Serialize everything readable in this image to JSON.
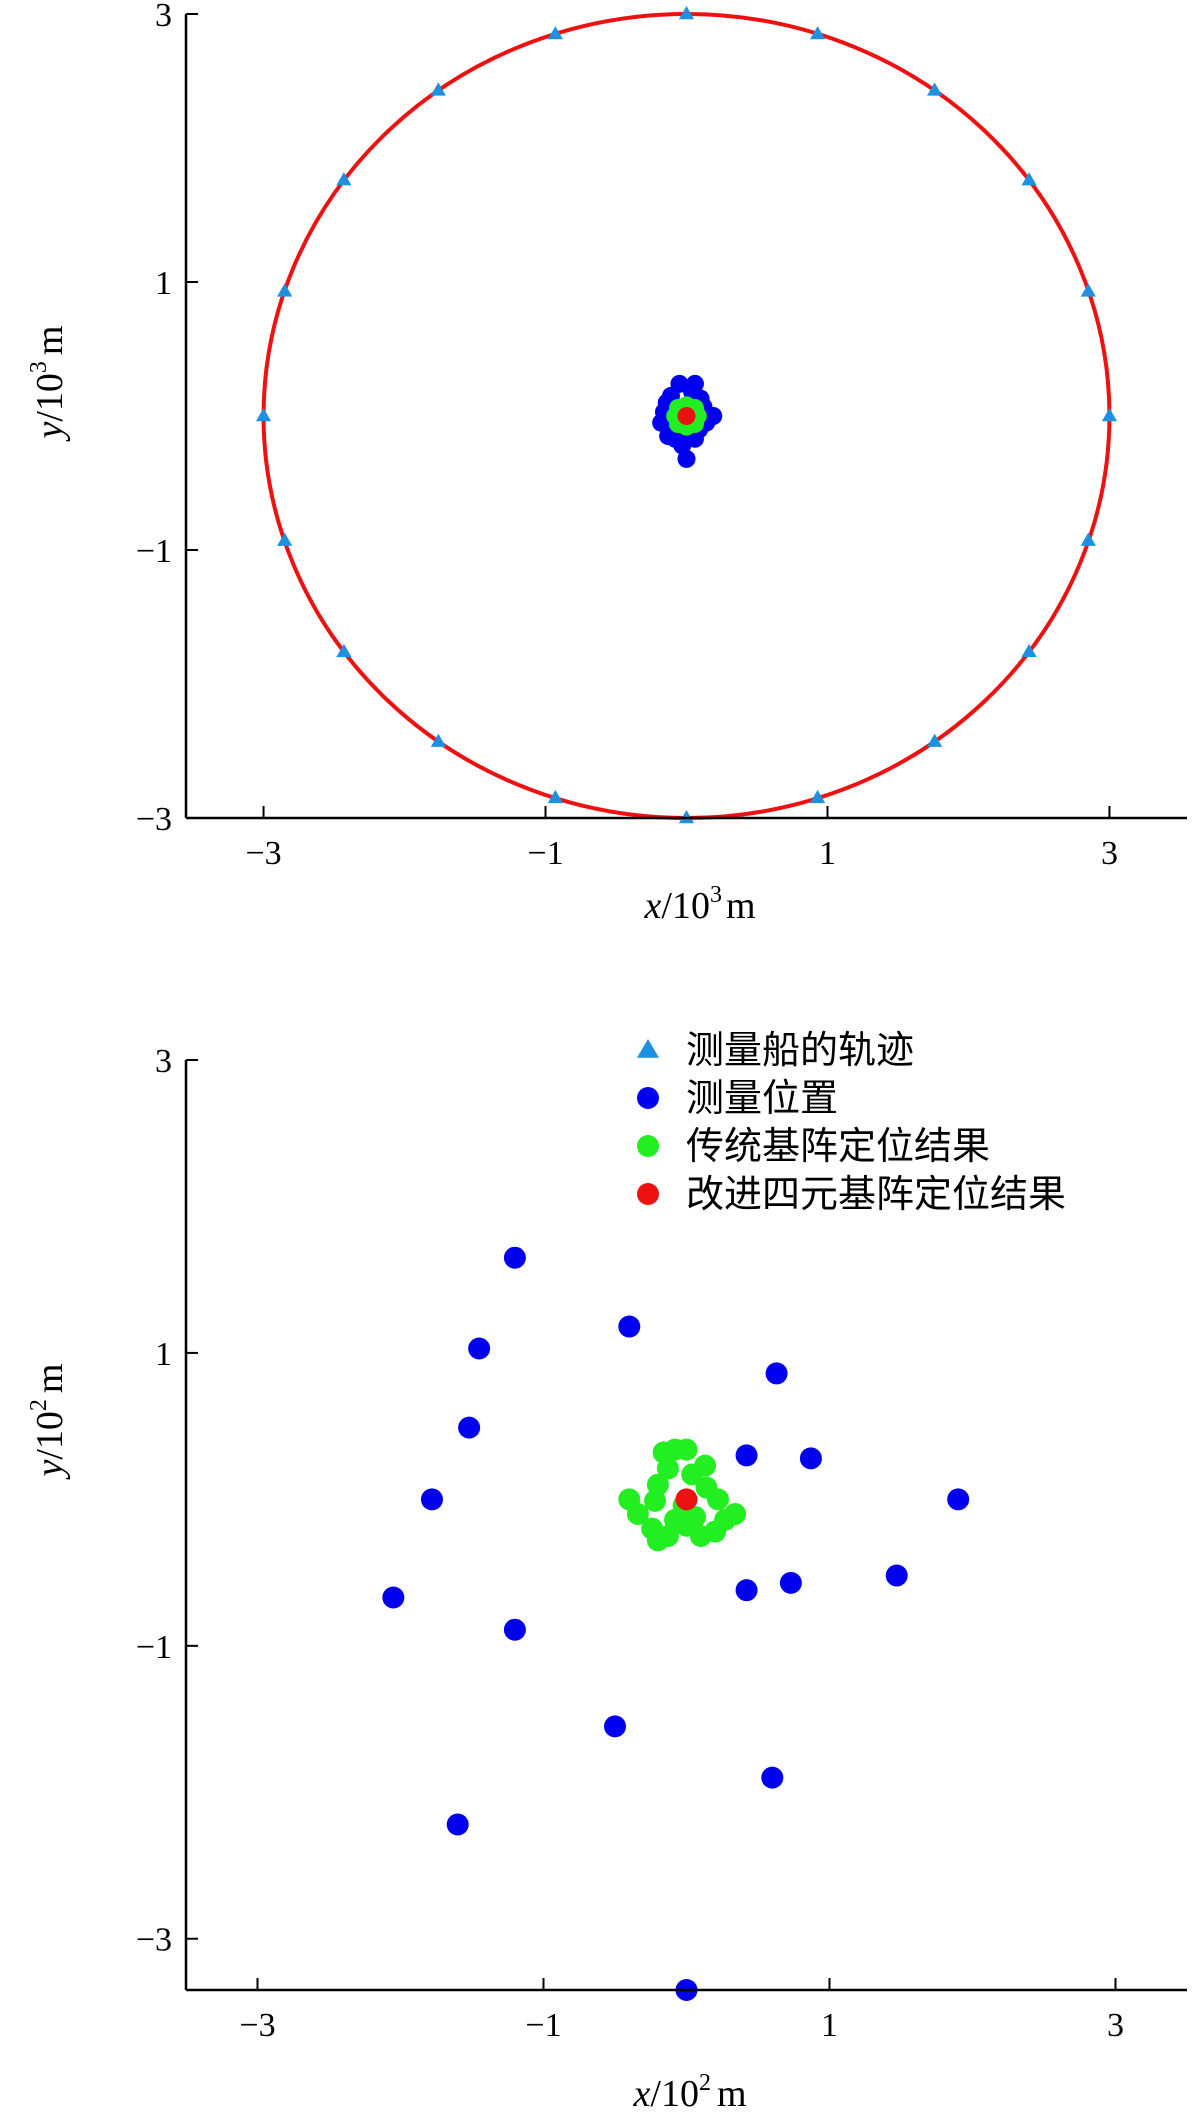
{
  "colors": {
    "track": "#1e90e0",
    "measured": "#0000ee",
    "traditional": "#22ee22",
    "improved": "#ee1111",
    "circle": "#ee1111",
    "axis": "#000000"
  },
  "chart_data": [
    {
      "type": "scatter",
      "title": "",
      "xlabel": {
        "var": "x",
        "slash": "/",
        "base": "10",
        "exp": "3",
        "unit": "m"
      },
      "ylabel": {
        "var": "y",
        "slash": "/",
        "base": "10",
        "exp": "3",
        "unit": "m"
      },
      "xlim": [
        -3.55,
        3.55
      ],
      "ylim": [
        -3.0,
        3.0
      ],
      "xticks": [
        -3,
        -1,
        1,
        3
      ],
      "xtick_labels": [
        "−3",
        "−1",
        "1",
        "3"
      ],
      "yticks": [
        -3,
        -1,
        1,
        3
      ],
      "ytick_labels": [
        "−3",
        "−1",
        "1",
        "3"
      ],
      "grid": false,
      "circle": {
        "cx": 0,
        "cy": 0,
        "r": 3.0,
        "color": "#ee1111"
      },
      "series": [
        {
          "key": "track",
          "marker": "triangle",
          "points": [
            [
              3.0,
              0.0
            ],
            [
              2.85,
              0.93
            ],
            [
              2.43,
              1.76
            ],
            [
              1.76,
              2.43
            ],
            [
              0.93,
              2.85
            ],
            [
              0.0,
              3.0
            ],
            [
              -0.93,
              2.85
            ],
            [
              -1.76,
              2.43
            ],
            [
              -2.43,
              1.76
            ],
            [
              -2.85,
              0.93
            ],
            [
              -3.0,
              0.0
            ],
            [
              -2.85,
              -0.93
            ],
            [
              -2.43,
              -1.76
            ],
            [
              -1.76,
              -2.43
            ],
            [
              -0.93,
              -2.85
            ],
            [
              0.0,
              -3.0
            ],
            [
              0.93,
              -2.85
            ],
            [
              1.76,
              -2.43
            ],
            [
              2.43,
              -1.76
            ],
            [
              2.85,
              -0.93
            ]
          ]
        },
        {
          "key": "measured",
          "marker": "circle",
          "points": [
            [
              0.0,
              -0.32
            ],
            [
              0.06,
              0.24
            ],
            [
              -0.05,
              0.24
            ],
            [
              0.12,
              0.07
            ],
            [
              0.18,
              0.0
            ],
            [
              -0.16,
              0.03
            ],
            [
              -0.18,
              -0.05
            ],
            [
              -0.08,
              -0.17
            ],
            [
              -0.13,
              -0.15
            ],
            [
              -0.04,
              -0.16
            ],
            [
              0.06,
              -0.17
            ],
            [
              0.09,
              -0.1
            ],
            [
              0.14,
              -0.05
            ],
            [
              0.1,
              0.13
            ],
            [
              -0.11,
              0.15
            ],
            [
              -0.14,
              0.1
            ],
            [
              0.04,
              0.18
            ],
            [
              0.19,
              0.0
            ],
            [
              -0.03,
              -0.22
            ]
          ]
        },
        {
          "key": "traditional",
          "marker": "circle",
          "points": [
            [
              0.08,
              0.0
            ],
            [
              -0.08,
              0.0
            ],
            [
              0.0,
              0.08
            ],
            [
              0.0,
              -0.08
            ],
            [
              0.06,
              0.06
            ],
            [
              -0.06,
              0.06
            ],
            [
              0.06,
              -0.06
            ],
            [
              -0.06,
              -0.06
            ]
          ]
        },
        {
          "key": "improved",
          "marker": "circle",
          "points": [
            [
              0.0,
              0.0
            ]
          ]
        }
      ]
    },
    {
      "type": "scatter",
      "title": "",
      "xlabel": {
        "var": "x",
        "slash": "/",
        "base": "10",
        "exp": "2",
        "unit": "m"
      },
      "ylabel": {
        "var": "y",
        "slash": "/",
        "base": "10",
        "exp": "2",
        "unit": "m"
      },
      "xlim": [
        -3.5,
        3.5
      ],
      "ylim": [
        -3.35,
        3.0
      ],
      "xticks": [
        -3,
        -1,
        1,
        3
      ],
      "xtick_labels": [
        "−3",
        "−1",
        "1",
        "3"
      ],
      "yticks": [
        -3,
        -1,
        1,
        3
      ],
      "ytick_labels": [
        "−3",
        "−1",
        "1",
        "3"
      ],
      "grid": false,
      "legend_position": "top-right",
      "series": [
        {
          "key": "track",
          "name": "测量船的轨迹",
          "marker": "triangle",
          "points": []
        },
        {
          "key": "measured",
          "name": "测量位置",
          "marker": "circle",
          "points": [
            [
              -1.2,
              1.65
            ],
            [
              -0.4,
              1.18
            ],
            [
              -1.45,
              1.03
            ],
            [
              0.63,
              0.86
            ],
            [
              -1.52,
              0.49
            ],
            [
              0.42,
              0.3
            ],
            [
              0.87,
              0.28
            ],
            [
              -1.78,
              0.0
            ],
            [
              1.9,
              0.0
            ],
            [
              1.47,
              -0.52
            ],
            [
              0.73,
              -0.57
            ],
            [
              0.42,
              -0.62
            ],
            [
              -2.05,
              -0.67
            ],
            [
              -1.2,
              -0.89
            ],
            [
              -0.5,
              -1.55
            ],
            [
              0.6,
              -1.9
            ],
            [
              -1.6,
              -2.22
            ],
            [
              0.0,
              -3.35
            ]
          ]
        },
        {
          "key": "traditional",
          "name": "传统基阵定位结果",
          "marker": "circle",
          "points": [
            [
              -0.16,
              0.32
            ],
            [
              -0.08,
              0.34
            ],
            [
              0.0,
              0.34
            ],
            [
              0.13,
              0.23
            ],
            [
              0.04,
              0.17
            ],
            [
              -0.13,
              0.21
            ],
            [
              -0.2,
              0.1
            ],
            [
              -0.22,
              -0.01
            ],
            [
              -0.4,
              0.0
            ],
            [
              -0.34,
              -0.1
            ],
            [
              -0.24,
              -0.2
            ],
            [
              -0.13,
              -0.25
            ],
            [
              0.0,
              -0.18
            ],
            [
              0.1,
              -0.25
            ],
            [
              0.2,
              -0.22
            ],
            [
              0.27,
              -0.14
            ],
            [
              0.34,
              -0.1
            ],
            [
              0.22,
              0.0
            ],
            [
              0.14,
              0.08
            ],
            [
              -0.02,
              -0.04
            ],
            [
              -0.08,
              -0.14
            ],
            [
              -0.2,
              -0.28
            ],
            [
              0.06,
              -0.12
            ]
          ]
        },
        {
          "key": "improved",
          "name": "改进四元基阵定位结果",
          "marker": "circle",
          "points": [
            [
              0.0,
              0.0
            ]
          ]
        }
      ]
    }
  ]
}
